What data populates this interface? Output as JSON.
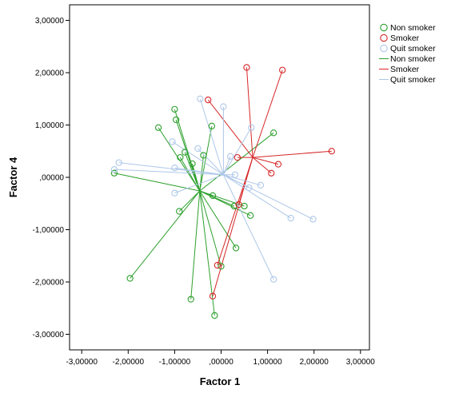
{
  "chart_data": {
    "type": "scatter",
    "title": "",
    "xlabel": "Factor 1",
    "ylabel": "Factor 4",
    "xlim": [
      -3.0,
      3.0
    ],
    "ylim": [
      -3.0,
      3.0
    ],
    "x_ticks": [
      -3,
      -2,
      -1,
      0,
      1,
      2,
      3
    ],
    "y_ticks": [
      -3,
      -2,
      -1,
      0,
      1,
      2,
      3
    ],
    "x_tick_labels": [
      "-3,00000",
      "-2,00000",
      "-1,00000",
      ",00000",
      "1,00000",
      "2,00000",
      "3,00000"
    ],
    "y_tick_labels": [
      "-3,00000",
      "-2,00000",
      "-1,00000",
      ",00000",
      "1,00000",
      "2,00000",
      "3,00000"
    ],
    "grid": false,
    "legend_position": "right",
    "legend": {
      "markers": [
        "Non smoker",
        "Smoker",
        "Quit smoker"
      ],
      "lines": [
        "Non smoker",
        "Smoker",
        "Quit smoker"
      ]
    },
    "series": [
      {
        "name": "Non smoker",
        "color": "#2ca02c",
        "centroid": [
          -0.46,
          -0.26
        ],
        "points": [
          [
            -2.3,
            0.08
          ],
          [
            -1.96,
            -1.93
          ],
          [
            -1.35,
            0.95
          ],
          [
            -1.0,
            1.3
          ],
          [
            -0.97,
            1.1
          ],
          [
            -0.9,
            -0.65
          ],
          [
            -0.88,
            0.38
          ],
          [
            -0.78,
            0.48
          ],
          [
            -0.62,
            0.26
          ],
          [
            -0.38,
            0.42
          ],
          [
            -0.2,
            0.98
          ],
          [
            -0.18,
            -0.35
          ],
          [
            -0.65,
            -2.33
          ],
          [
            -0.14,
            -2.64
          ],
          [
            0.0,
            -1.7
          ],
          [
            0.28,
            -0.55
          ],
          [
            0.5,
            -0.55
          ],
          [
            0.63,
            -0.73
          ],
          [
            0.32,
            -1.35
          ],
          [
            1.13,
            0.85
          ]
        ]
      },
      {
        "name": "Smoker",
        "color": "#d62728",
        "centroid": [
          0.68,
          0.38
        ],
        "points": [
          [
            -0.28,
            1.48
          ],
          [
            0.55,
            2.1
          ],
          [
            1.32,
            2.05
          ],
          [
            2.38,
            0.5
          ],
          [
            1.23,
            0.25
          ],
          [
            1.08,
            0.08
          ],
          [
            0.35,
            0.38
          ],
          [
            0.38,
            -0.52
          ],
          [
            -0.08,
            -1.68
          ],
          [
            -0.18,
            -2.27
          ]
        ]
      },
      {
        "name": "Quit smoker",
        "color": "#aec7e8",
        "centroid": [
          0.05,
          0.05
        ],
        "points": [
          [
            -0.45,
            1.5
          ],
          [
            0.05,
            1.35
          ],
          [
            0.65,
            0.95
          ],
          [
            -2.2,
            0.28
          ],
          [
            -2.3,
            0.15
          ],
          [
            -1.05,
            0.68
          ],
          [
            -1.0,
            0.18
          ],
          [
            -1.0,
            -0.3
          ],
          [
            0.2,
            0.4
          ],
          [
            0.6,
            -0.2
          ],
          [
            1.5,
            -0.78
          ],
          [
            1.98,
            -0.8
          ],
          [
            1.13,
            -1.95
          ],
          [
            -0.5,
            0.55
          ],
          [
            0.85,
            -0.15
          ],
          [
            0.3,
            0.05
          ]
        ]
      }
    ]
  }
}
